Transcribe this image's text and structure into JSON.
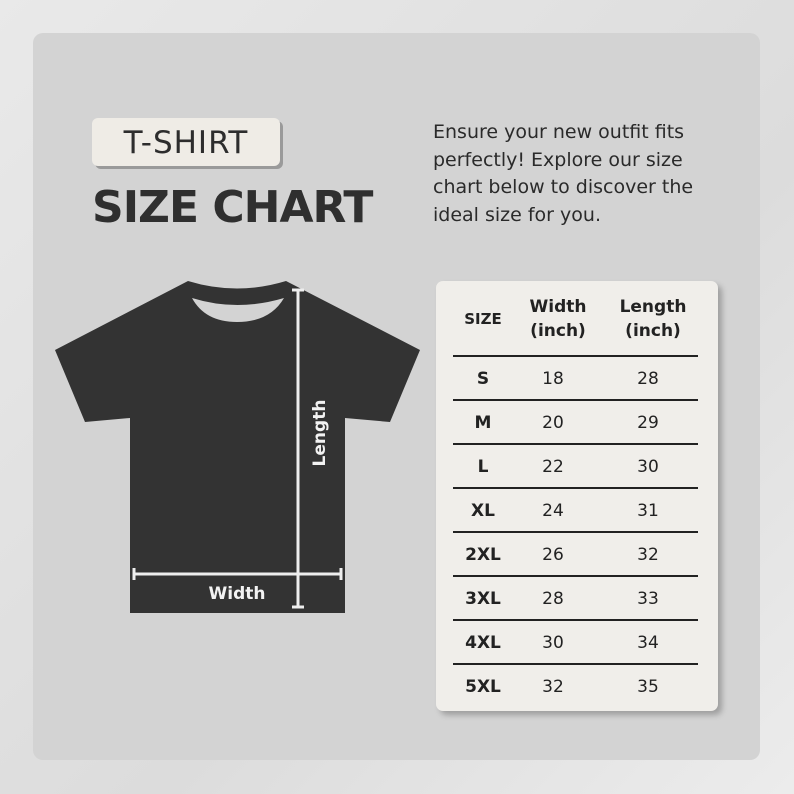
{
  "badge": "T-SHIRT",
  "title": "SIZE CHART",
  "description": "Ensure your new outfit fits perfectly! Explore our size chart below to discover the ideal size for you.",
  "diagram": {
    "length_label": "Length",
    "width_label": "Width"
  },
  "table": {
    "headers": {
      "size": "SIZE",
      "width_1": "Width",
      "width_2": "(inch)",
      "length_1": "Length",
      "length_2": "(inch)"
    },
    "rows": [
      {
        "size": "S",
        "width": "18",
        "length": "28"
      },
      {
        "size": "M",
        "width": "20",
        "length": "29"
      },
      {
        "size": "L",
        "width": "22",
        "length": "30"
      },
      {
        "size": "XL",
        "width": "24",
        "length": "31"
      },
      {
        "size": "2XL",
        "width": "26",
        "length": "32"
      },
      {
        "size": "3XL",
        "width": "28",
        "length": "33"
      },
      {
        "size": "4XL",
        "width": "30",
        "length": "34"
      },
      {
        "size": "5XL",
        "width": "32",
        "length": "35"
      }
    ]
  }
}
